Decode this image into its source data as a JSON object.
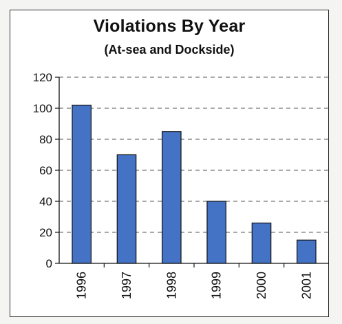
{
  "chart_data": {
    "type": "bar",
    "title": "Violations By Year",
    "subtitle": "(At-sea and Dockside)",
    "xlabel": "",
    "ylabel": "",
    "categories": [
      "1996",
      "1997",
      "1998",
      "1999",
      "2000",
      "2001"
    ],
    "values": [
      102,
      70,
      85,
      40,
      26,
      15
    ],
    "ylim": [
      0,
      120
    ],
    "yticks": [
      0,
      20,
      40,
      60,
      80,
      100,
      120
    ],
    "grid": "horizontal dashed",
    "legend": "none",
    "colors": {
      "bar_fill": "#4472c4",
      "bar_stroke": "#111111",
      "grid": "#555555"
    }
  }
}
